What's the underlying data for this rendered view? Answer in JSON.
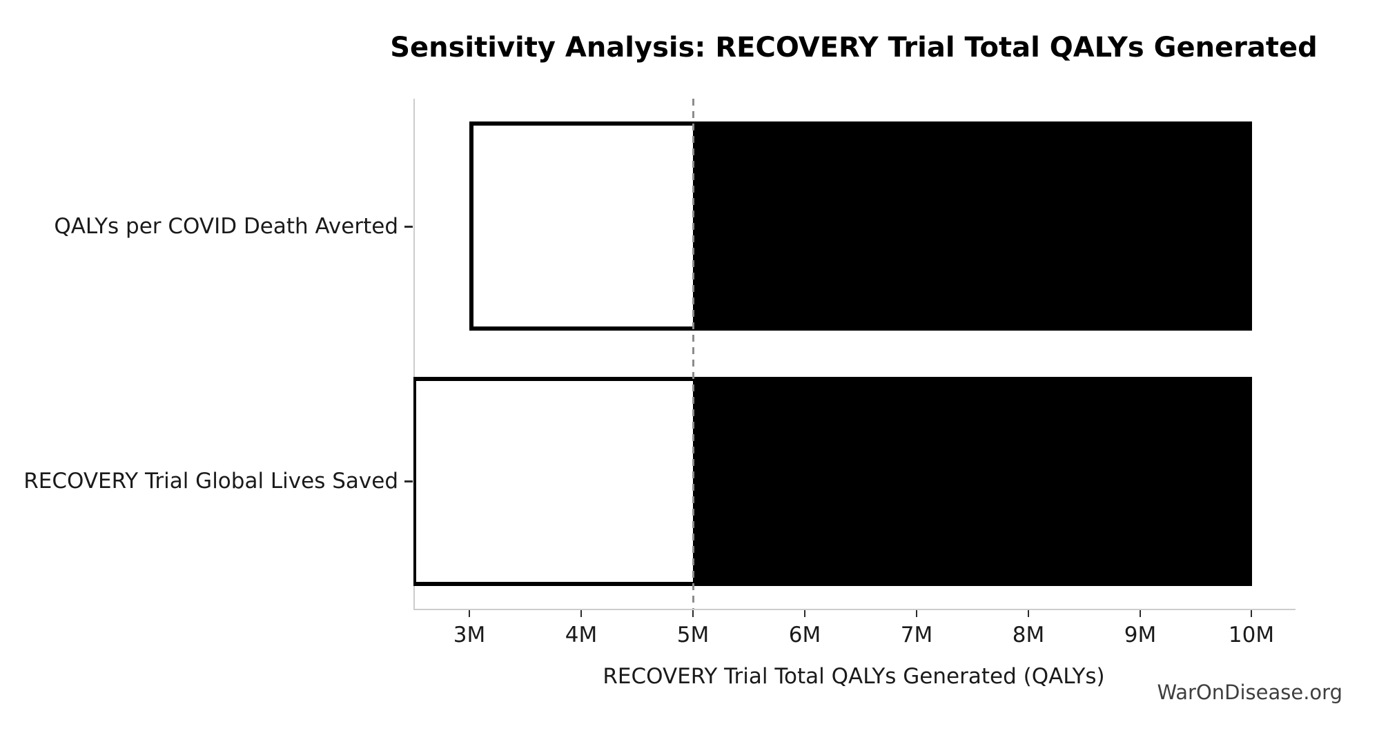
{
  "title": "Sensitivity Analysis: RECOVERY Trial Total QALYs Generated",
  "watermark": "WarOnDisease.org",
  "chart_data": {
    "type": "bar",
    "orientation": "horizontal",
    "variant": "tornado-sensitivity",
    "title": "Sensitivity Analysis: RECOVERY Trial Total QALYs Generated",
    "xlabel": "RECOVERY Trial Total QALYs Generated (QALYs)",
    "ylabel": "",
    "categories": [
      "QALYs per COVID Death Averted",
      "RECOVERY Trial Global Lives Saved"
    ],
    "base_value": 5000000,
    "bars": [
      {
        "category": "QALYs per COVID Death Averted",
        "low": 3000000,
        "high": 10000000,
        "low_clipped_at_axis": false
      },
      {
        "category": "RECOVERY Trial Global Lives Saved",
        "low": 2500000,
        "high": 10000000,
        "low_clipped_at_axis": true
      }
    ],
    "xlim": [
      2500000,
      10380000
    ],
    "xticks": [
      {
        "value": 3000000,
        "label": "3M"
      },
      {
        "value": 4000000,
        "label": "4M"
      },
      {
        "value": 5000000,
        "label": "5M"
      },
      {
        "value": 6000000,
        "label": "6M"
      },
      {
        "value": 7000000,
        "label": "7M"
      },
      {
        "value": 8000000,
        "label": "8M"
      },
      {
        "value": 9000000,
        "label": "9M"
      },
      {
        "value": 10000000,
        "label": "10M"
      }
    ],
    "grid": false,
    "legend": false,
    "baseline_style": "dashed",
    "colors": {
      "below_base_fill": "#ffffff",
      "above_base_fill": "#000000",
      "bar_border": "#000000",
      "baseline_dash": "#8c8c8c",
      "spine": "#cccccc",
      "tick": "#2b2b2b",
      "text": "#1a1a1a",
      "watermark_text": "#3f3f3f"
    }
  }
}
